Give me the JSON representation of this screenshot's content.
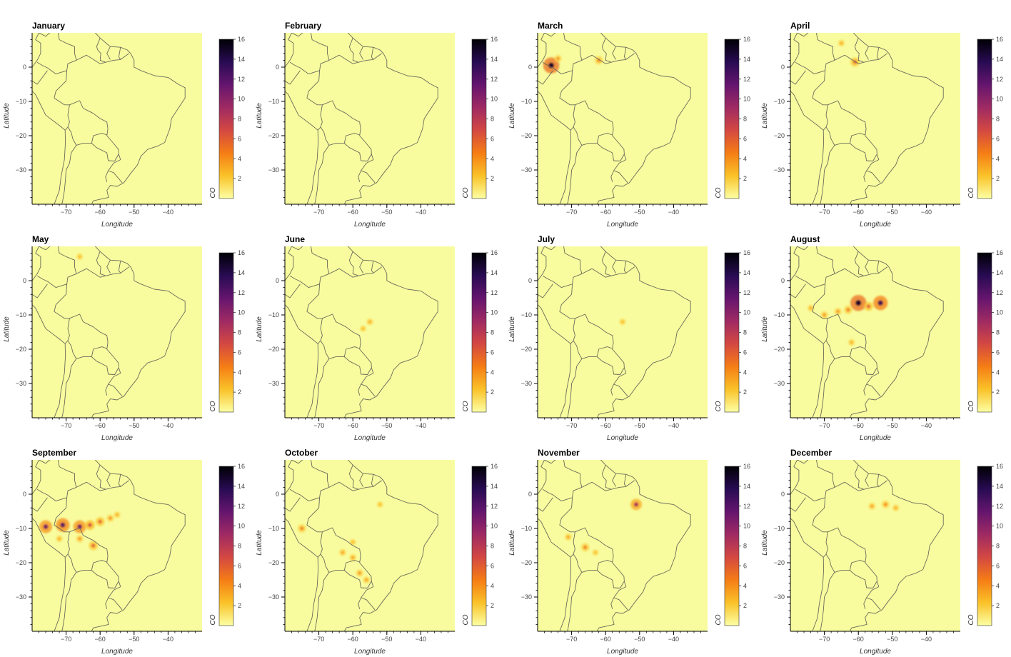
{
  "chart_data": {
    "type": "heatmap",
    "layout": "grid 3x4 of maps",
    "xlabel": "Longitude",
    "ylabel": "Latitude",
    "colorbar_label": "CO",
    "colorbar_ticks": [
      2,
      4,
      6,
      8,
      10,
      12,
      14,
      16
    ],
    "colorbar_range": [
      0,
      16
    ],
    "x_ticks": [
      -70,
      -60,
      -50,
      -40
    ],
    "y_ticks": [
      0,
      -10,
      -20,
      -30
    ],
    "xlim": [
      -80,
      -30
    ],
    "ylim": [
      -40,
      10
    ],
    "colormap": [
      "#fcffa4",
      "#fac228",
      "#f57d15",
      "#d44842",
      "#9f2a63",
      "#65156e",
      "#280b53",
      "#000004"
    ],
    "background_color": "#f8fc9e",
    "months": [
      {
        "name": "January",
        "hotspots": []
      },
      {
        "name": "February",
        "hotspots": []
      },
      {
        "name": "March",
        "hotspots": [
          {
            "lon": -76,
            "lat": 0.5,
            "co": 15
          },
          {
            "lon": -74,
            "lat": 2.5,
            "co": 4
          },
          {
            "lon": -62,
            "lat": 2,
            "co": 5
          }
        ]
      },
      {
        "name": "April",
        "hotspots": [
          {
            "lon": -61,
            "lat": 1.5,
            "co": 6
          },
          {
            "lon": -65,
            "lat": 7,
            "co": 3
          }
        ]
      },
      {
        "name": "May",
        "hotspots": [
          {
            "lon": -66,
            "lat": 7,
            "co": 2.5
          }
        ]
      },
      {
        "name": "June",
        "hotspots": [
          {
            "lon": -55,
            "lat": -12,
            "co": 3
          },
          {
            "lon": -57,
            "lat": -14,
            "co": 2.5
          }
        ]
      },
      {
        "name": "July",
        "hotspots": [
          {
            "lon": -55,
            "lat": -12,
            "co": 2.5
          }
        ]
      },
      {
        "name": "August",
        "hotspots": [
          {
            "lon": -60,
            "lat": -6.5,
            "co": 15
          },
          {
            "lon": -53.5,
            "lat": -6.5,
            "co": 13
          },
          {
            "lon": -57,
            "lat": -7.5,
            "co": 6
          },
          {
            "lon": -63,
            "lat": -8.5,
            "co": 5
          },
          {
            "lon": -66,
            "lat": -9,
            "co": 4
          },
          {
            "lon": -70,
            "lat": -10,
            "co": 4
          },
          {
            "lon": -74,
            "lat": -8,
            "co": 3
          },
          {
            "lon": -62,
            "lat": -18,
            "co": 3
          }
        ]
      },
      {
        "name": "September",
        "hotspots": [
          {
            "lon": -76,
            "lat": -9.5,
            "co": 11
          },
          {
            "lon": -71,
            "lat": -9,
            "co": 12
          },
          {
            "lon": -66,
            "lat": -9.5,
            "co": 11
          },
          {
            "lon": -63,
            "lat": -9,
            "co": 7
          },
          {
            "lon": -60,
            "lat": -8,
            "co": 6
          },
          {
            "lon": -57,
            "lat": -7,
            "co": 4
          },
          {
            "lon": -62,
            "lat": -15,
            "co": 6
          },
          {
            "lon": -66,
            "lat": -13,
            "co": 4
          },
          {
            "lon": -72,
            "lat": -13,
            "co": 3
          },
          {
            "lon": -55,
            "lat": -6,
            "co": 3
          }
        ]
      },
      {
        "name": "October",
        "hotspots": [
          {
            "lon": -75,
            "lat": -10,
            "co": 5
          },
          {
            "lon": -63,
            "lat": -17,
            "co": 3.5
          },
          {
            "lon": -60,
            "lat": -18.5,
            "co": 3.5
          },
          {
            "lon": -58,
            "lat": -23,
            "co": 4
          },
          {
            "lon": -56,
            "lat": -25,
            "co": 3.5
          },
          {
            "lon": -60,
            "lat": -14,
            "co": 2.5
          },
          {
            "lon": -52,
            "lat": -3,
            "co": 2.5
          }
        ]
      },
      {
        "name": "November",
        "hotspots": [
          {
            "lon": -51,
            "lat": -3,
            "co": 9
          },
          {
            "lon": -66,
            "lat": -15.5,
            "co": 5
          },
          {
            "lon": -71,
            "lat": -12.5,
            "co": 3.5
          },
          {
            "lon": -63,
            "lat": -17,
            "co": 2.5
          }
        ]
      },
      {
        "name": "December",
        "hotspots": [
          {
            "lon": -52,
            "lat": -3,
            "co": 4.5
          },
          {
            "lon": -56,
            "lat": -3.5,
            "co": 3.5
          },
          {
            "lon": -49,
            "lat": -4,
            "co": 3
          }
        ]
      }
    ]
  }
}
